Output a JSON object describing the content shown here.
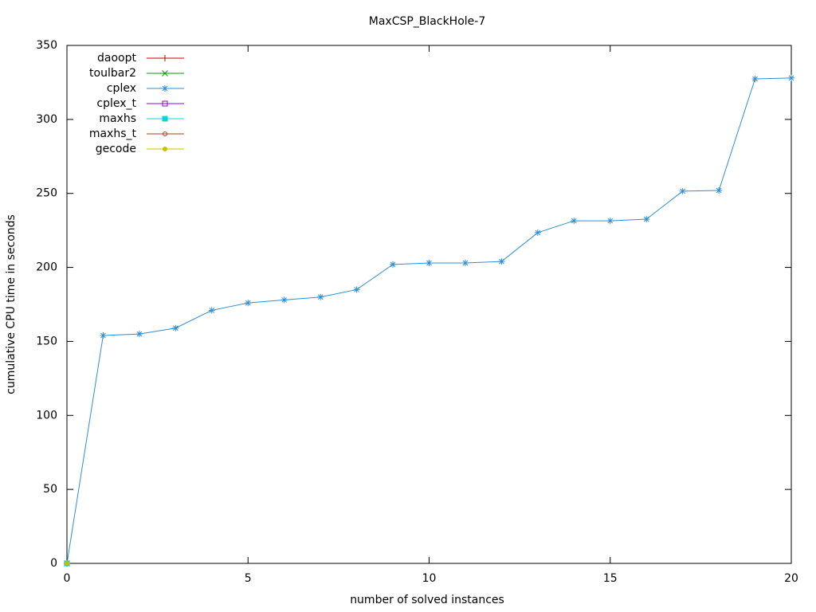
{
  "chart_data": {
    "type": "line",
    "title": "MaxCSP_BlackHole-7",
    "x_label": "number of solved instances",
    "y_label": "cumulative CPU time in seconds",
    "xlim": [
      0,
      20
    ],
    "xticks": [
      0,
      5,
      10,
      15,
      20
    ],
    "ylim": [
      0,
      350
    ],
    "yticks": [
      0,
      50,
      100,
      150,
      200,
      250,
      300,
      350
    ],
    "grid": false,
    "legend": "top-left",
    "series": [
      {
        "name": "daoopt",
        "color": "#c00000",
        "point": "plus",
        "x": [
          0
        ],
        "values": [
          0
        ]
      },
      {
        "name": "toulbar2",
        "color": "#009e00",
        "point": "cross",
        "x": [
          0
        ],
        "values": [
          0
        ]
      },
      {
        "name": "cplex",
        "color": "#2d8fd8",
        "point": "star",
        "x": [
          0,
          1,
          2,
          3,
          4,
          5,
          6,
          7,
          8,
          9,
          10,
          11,
          12,
          13,
          14,
          15,
          16,
          17,
          18,
          19,
          20
        ],
        "values": [
          0,
          154,
          155,
          159,
          171,
          176,
          178,
          180,
          185,
          202,
          203,
          203,
          204,
          223.5,
          231.5,
          231.5,
          232.6,
          251.5,
          252,
          327.4,
          328
        ]
      },
      {
        "name": "cplex_t",
        "color": "#9400d3",
        "point": "box",
        "x": [
          0
        ],
        "values": [
          0
        ]
      },
      {
        "name": "maxhs",
        "color": "#00d8d8",
        "point": "filled-box",
        "x": [
          0
        ],
        "values": [
          0
        ]
      },
      {
        "name": "maxhs_t",
        "color": "#a0441e",
        "point": "circle",
        "x": [
          0
        ],
        "values": [
          0
        ]
      },
      {
        "name": "gecode",
        "color": "#c8c000",
        "point": "filled-circle",
        "x": [
          0
        ],
        "values": [
          0
        ]
      }
    ]
  }
}
